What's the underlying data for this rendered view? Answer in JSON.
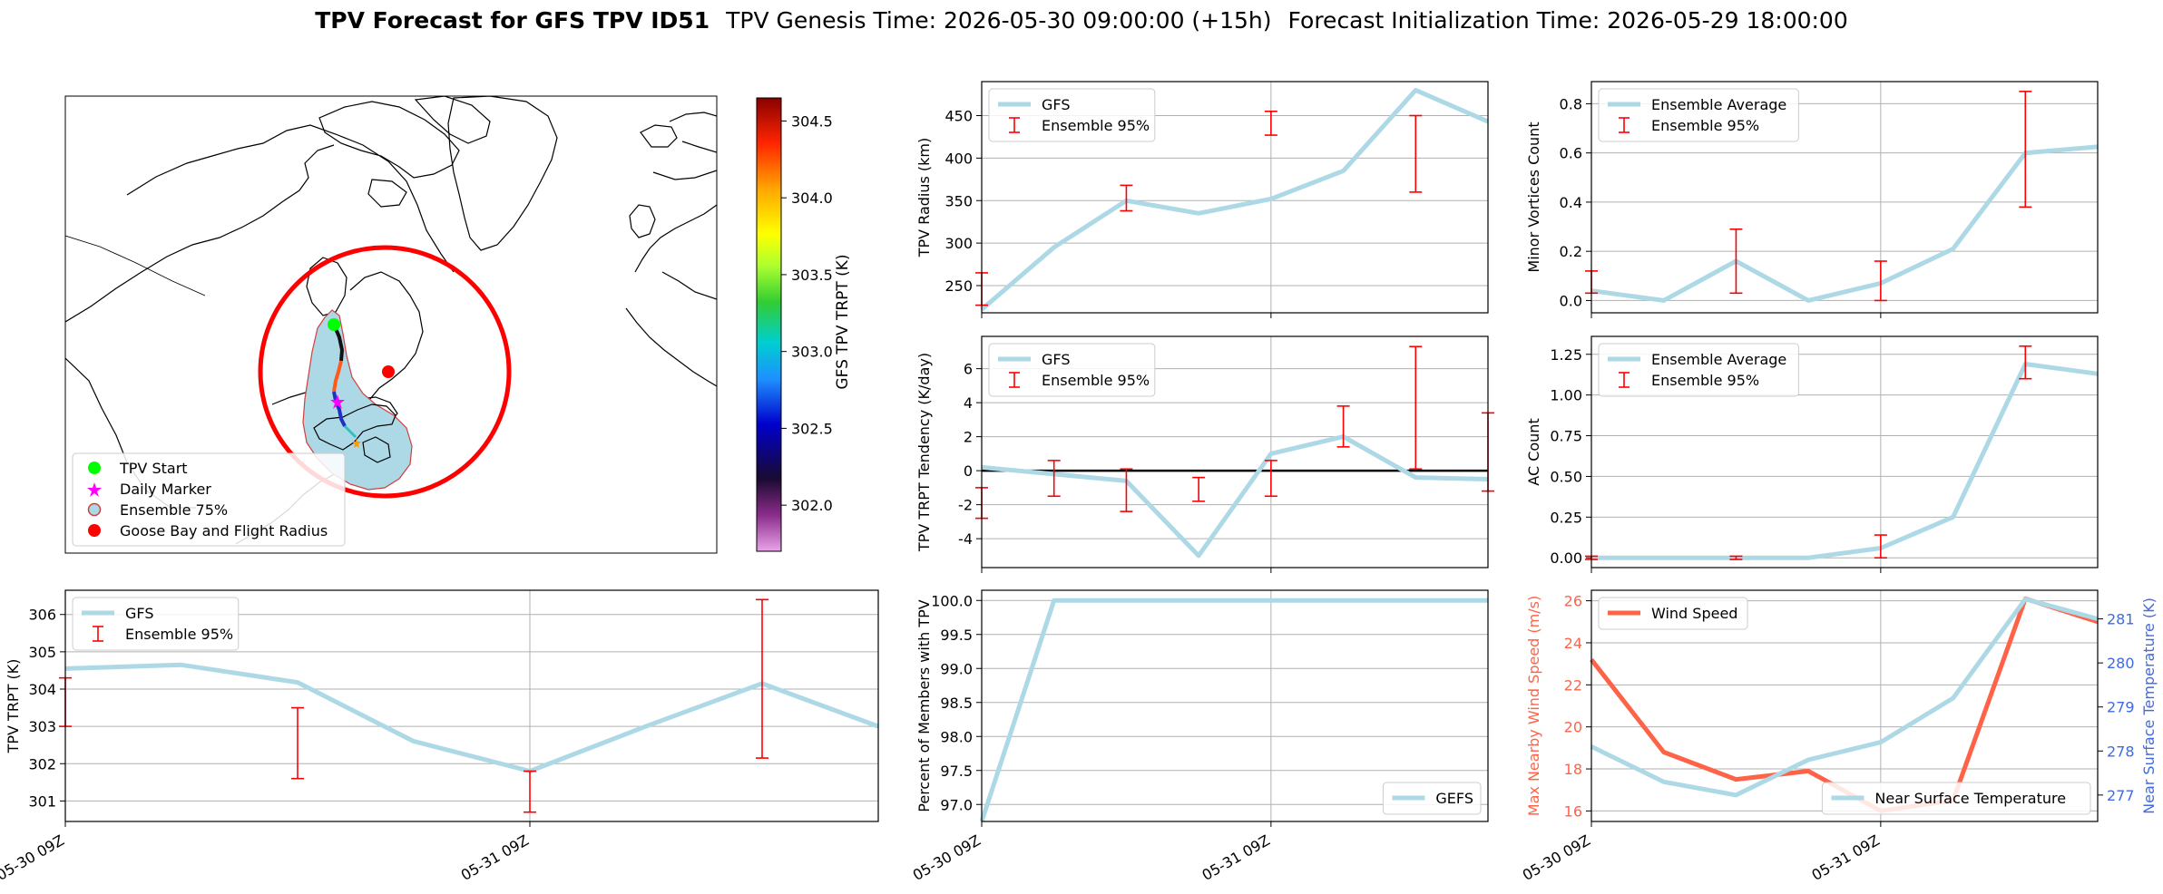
{
  "header": {
    "title_bold": "TPV Forecast for GFS TPV ID51",
    "genesis": "TPV Genesis Time: 2026-05-30 09:00:00 (+15h)",
    "init": "Forecast Initialization Time: 2026-05-29 18:00:00"
  },
  "colors": {
    "light_blue": "#add8e6",
    "red": "#ff0000",
    "tomato": "#ff6347",
    "royal_blue": "#4169e1",
    "grid": "#b0b0b0"
  },
  "map": {
    "legend": [
      "TPV Start",
      "Daily Marker",
      "Ensemble 75%",
      "Goose Bay and Flight Radius"
    ],
    "colorbar_label": "GFS TPV TRPT (K)",
    "colorbar_ticks": [
      "304.5",
      "304.0",
      "303.5",
      "303.0",
      "302.5",
      "302.0"
    ],
    "colorbar_range": [
      301.7,
      304.65
    ],
    "icons": [
      "green-circle-icon",
      "magenta-star-icon",
      "ensemble-patch-icon",
      "red-circle-icon"
    ]
  },
  "chart_data": [
    {
      "id": "trpt",
      "type": "line",
      "ylabel": "TPV TRPT (K)",
      "ylim": [
        300.45,
        306.65
      ],
      "yticks": [
        301,
        302,
        303,
        304,
        305,
        306
      ],
      "x": [
        0,
        6,
        12,
        18,
        24,
        30,
        36,
        42
      ],
      "xticklabels": [
        {
          "x": 0,
          "label": "05-30 09Z"
        },
        {
          "x": 24,
          "label": "05-31 09Z"
        }
      ],
      "series": [
        {
          "name": "GFS",
          "values": [
            304.55,
            304.65,
            304.18,
            302.6,
            301.8,
            303.0,
            304.15,
            303.0
          ]
        }
      ],
      "errorbars": {
        "name": "Ensemble 95%",
        "bars": [
          [
            0,
            303.0,
            304.3
          ],
          [
            12,
            301.6,
            303.5
          ],
          [
            24,
            300.7,
            301.8
          ],
          [
            36,
            302.15,
            306.4
          ]
        ]
      },
      "grid": true,
      "legend": "upper-left"
    },
    {
      "id": "radius",
      "type": "line",
      "ylabel": "TPV Radius (km)",
      "ylim": [
        218,
        490
      ],
      "yticks": [
        250,
        300,
        350,
        400,
        450
      ],
      "x": [
        0,
        6,
        12,
        18,
        24,
        30,
        36,
        42
      ],
      "series": [
        {
          "name": "GFS",
          "values": [
            222,
            295,
            350,
            335,
            352,
            385,
            480,
            443
          ]
        }
      ],
      "errorbars": {
        "name": "Ensemble 95%",
        "bars": [
          [
            0,
            227,
            265
          ],
          [
            12,
            338,
            368
          ],
          [
            24,
            427,
            455
          ],
          [
            36,
            360,
            450
          ]
        ]
      },
      "grid": true,
      "legend": "upper-left"
    },
    {
      "id": "tendency",
      "type": "line",
      "ylabel": "TPV TRPT Tendency (K/day)",
      "ylim": [
        -5.7,
        7.9
      ],
      "yticks": [
        -4,
        -2,
        0,
        2,
        4,
        6
      ],
      "x": [
        0,
        6,
        12,
        18,
        24,
        30,
        36,
        42
      ],
      "series": [
        {
          "name": "GFS",
          "values": [
            0.2,
            -0.2,
            -0.6,
            -5.0,
            1.0,
            2.0,
            -0.4,
            -0.5
          ]
        }
      ],
      "errorbars": {
        "name": "Ensemble 95%",
        "bars": [
          [
            0,
            -2.8,
            -1.0
          ],
          [
            6,
            -1.5,
            0.6
          ],
          [
            12,
            -2.4,
            0.1
          ],
          [
            18,
            -1.8,
            -0.4
          ],
          [
            24,
            -1.5,
            0.6
          ],
          [
            30,
            1.4,
            3.8
          ],
          [
            36,
            0.1,
            7.3
          ],
          [
            42,
            -1.2,
            3.4
          ]
        ]
      },
      "zero_line": true,
      "grid": true,
      "legend": "upper-left"
    },
    {
      "id": "members",
      "type": "line",
      "ylabel": "Percent of Members with TPV",
      "ylim": [
        96.75,
        100.15
      ],
      "yticks": [
        97.0,
        97.5,
        98.0,
        98.5,
        99.0,
        99.5,
        100.0
      ],
      "x": [
        0,
        6,
        12,
        18,
        24,
        30,
        36,
        42
      ],
      "xticklabels": [
        {
          "x": 0,
          "label": "05-30 09Z"
        },
        {
          "x": 24,
          "label": "05-31 09Z"
        }
      ],
      "series": [
        {
          "name": "GEFS",
          "values": [
            96.75,
            100.0,
            100.0,
            100.0,
            100.0,
            100.0,
            100.0,
            100.0
          ]
        }
      ],
      "grid": true,
      "legend": "lower-right"
    },
    {
      "id": "minor",
      "type": "line",
      "ylabel": "Minor Vortices Count",
      "ylim": [
        -0.05,
        0.89
      ],
      "yticks": [
        0.0,
        0.2,
        0.4,
        0.6,
        0.8
      ],
      "x": [
        0,
        6,
        12,
        18,
        24,
        30,
        36,
        42
      ],
      "series": [
        {
          "name": "Ensemble Average",
          "values": [
            0.04,
            0.0,
            0.16,
            0.0,
            0.07,
            0.21,
            0.6,
            0.625
          ]
        }
      ],
      "errorbars": {
        "name": "Ensemble 95%",
        "bars": [
          [
            0,
            0.03,
            0.12
          ],
          [
            12,
            0.03,
            0.29
          ],
          [
            24,
            0.0,
            0.16
          ],
          [
            36,
            0.38,
            0.85
          ]
        ]
      },
      "grid": true,
      "legend": "upper-left"
    },
    {
      "id": "ac",
      "type": "line",
      "ylabel": "AC Count",
      "ylim": [
        -0.06,
        1.36
      ],
      "yticks": [
        0.0,
        0.25,
        0.5,
        0.75,
        1.0,
        1.25
      ],
      "x": [
        0,
        6,
        12,
        18,
        24,
        30,
        36,
        42
      ],
      "series": [
        {
          "name": "Ensemble Average",
          "values": [
            0.0,
            0.0,
            0.0,
            0.0,
            0.06,
            0.25,
            1.19,
            1.13
          ]
        }
      ],
      "errorbars": {
        "name": "Ensemble 95%",
        "bars": [
          [
            0,
            -0.01,
            0.01
          ],
          [
            12,
            -0.01,
            0.01
          ],
          [
            24,
            0.0,
            0.14
          ],
          [
            36,
            1.1,
            1.3
          ]
        ]
      },
      "grid": true,
      "legend": "upper-left"
    },
    {
      "id": "wind",
      "type": "line",
      "ylabel": "Max Nearby Wind Speed (m/s)",
      "ylabel_right": "Near Surface Temperature (K)",
      "ylim": [
        15.5,
        26.5
      ],
      "yticks": [
        16,
        18,
        20,
        22,
        24,
        26
      ],
      "ylim_right": [
        276.4,
        281.65
      ],
      "yticks_right": [
        277,
        278,
        279,
        280,
        281
      ],
      "x": [
        0,
        6,
        12,
        18,
        24,
        30,
        36,
        42
      ],
      "xticklabels": [
        {
          "x": 0,
          "label": "05-30 09Z"
        },
        {
          "x": 24,
          "label": "05-31 09Z"
        }
      ],
      "series": [
        {
          "name": "Wind Speed",
          "values": [
            23.2,
            18.8,
            17.5,
            17.9,
            16.0,
            16.5,
            26.1,
            25.0
          ],
          "axis": "left"
        },
        {
          "name": "Near Surface Temperature",
          "values": [
            278.1,
            277.3,
            277.0,
            277.8,
            278.2,
            279.2,
            281.45,
            281.0
          ],
          "axis": "right"
        }
      ],
      "grid": true,
      "legends": [
        "upper-left",
        "lower-right"
      ]
    }
  ]
}
